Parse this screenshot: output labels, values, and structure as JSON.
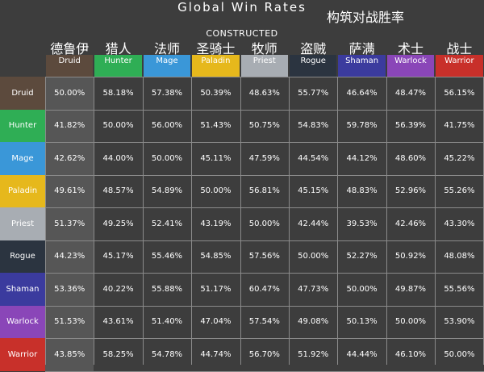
{
  "title": "Global Win Rates",
  "title_cn": "构筑对战胜率",
  "subtitle": "CONSTRUCTED",
  "chart_data": {
    "type": "table",
    "title": "Global Win Rates",
    "subtitle": "CONSTRUCTED",
    "columns": [
      {
        "en": "Druid",
        "cn": "德鲁伊",
        "color": "#5c4a3d"
      },
      {
        "en": "Hunter",
        "cn": "猎人",
        "color": "#2fae55"
      },
      {
        "en": "Mage",
        "cn": "法师",
        "color": "#3a97d8"
      },
      {
        "en": "Paladin",
        "cn": "圣骑士",
        "color": "#e6b81c"
      },
      {
        "en": "Priest",
        "cn": "牧师",
        "color": "#a8adb3"
      },
      {
        "en": "Rogue",
        "cn": "盗贼",
        "color": "#2b3440"
      },
      {
        "en": "Shaman",
        "cn": "萨满",
        "color": "#3b3b9e"
      },
      {
        "en": "Warlock",
        "cn": "术士",
        "color": "#8a46b8"
      },
      {
        "en": "Warrior",
        "cn": "战士",
        "color": "#c8302a"
      }
    ],
    "rows": [
      {
        "en": "Druid",
        "color": "#5c4a3d",
        "values": [
          "50.00%",
          "58.18%",
          "57.38%",
          "50.39%",
          "48.63%",
          "55.77%",
          "46.64%",
          "48.47%",
          "56.15%"
        ]
      },
      {
        "en": "Hunter",
        "color": "#2fae55",
        "values": [
          "41.82%",
          "50.00%",
          "56.00%",
          "51.43%",
          "50.75%",
          "54.83%",
          "59.78%",
          "56.39%",
          "41.75%"
        ]
      },
      {
        "en": "Mage",
        "color": "#3a97d8",
        "values": [
          "42.62%",
          "44.00%",
          "50.00%",
          "45.11%",
          "47.59%",
          "44.54%",
          "44.12%",
          "48.60%",
          "45.22%"
        ]
      },
      {
        "en": "Paladin",
        "color": "#e6b81c",
        "values": [
          "49.61%",
          "48.57%",
          "54.89%",
          "50.00%",
          "56.81%",
          "45.15%",
          "48.83%",
          "52.96%",
          "55.26%"
        ]
      },
      {
        "en": "Priest",
        "color": "#a8adb3",
        "values": [
          "51.37%",
          "49.25%",
          "52.41%",
          "43.19%",
          "50.00%",
          "42.44%",
          "39.53%",
          "42.46%",
          "43.30%"
        ]
      },
      {
        "en": "Rogue",
        "color": "#2b3440",
        "values": [
          "44.23%",
          "45.17%",
          "55.46%",
          "54.85%",
          "57.56%",
          "50.00%",
          "52.27%",
          "50.92%",
          "48.08%"
        ]
      },
      {
        "en": "Shaman",
        "color": "#3b3b9e",
        "values": [
          "53.36%",
          "40.22%",
          "55.88%",
          "51.17%",
          "60.47%",
          "47.73%",
          "50.00%",
          "49.87%",
          "55.56%"
        ]
      },
      {
        "en": "Warlock",
        "color": "#8a46b8",
        "values": [
          "51.53%",
          "43.61%",
          "51.40%",
          "47.04%",
          "57.54%",
          "49.08%",
          "50.13%",
          "50.00%",
          "53.90%"
        ]
      },
      {
        "en": "Warrior",
        "color": "#c8302a",
        "values": [
          "43.85%",
          "58.25%",
          "54.78%",
          "44.74%",
          "56.70%",
          "51.92%",
          "44.44%",
          "46.10%",
          "50.00%"
        ]
      }
    ]
  }
}
